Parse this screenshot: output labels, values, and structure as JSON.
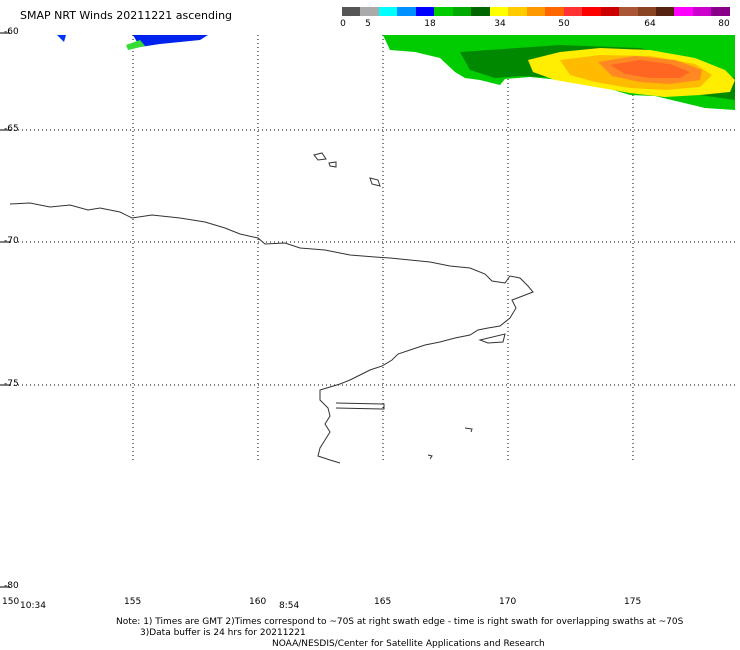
{
  "title": "SMAP NRT Winds 20211221 ascending",
  "legend": {
    "ticks": [
      "0",
      "5",
      "18",
      "34",
      "50",
      "64",
      "80"
    ],
    "colors": [
      "#555555",
      "#aaaaaa",
      "#00ffff",
      "#0090ff",
      "#0000ff",
      "#00cc00",
      "#00aa00",
      "#006600",
      "#ffff00",
      "#ffcc00",
      "#ff9900",
      "#ff6600",
      "#ff3333",
      "#ff0000",
      "#cc0000",
      "#aa5533",
      "#884422",
      "#552211",
      "#ff00ff",
      "#cc00cc",
      "#880088"
    ]
  },
  "lat_labels": [
    "-60",
    "-65",
    "-70",
    "-75",
    "-80"
  ],
  "lon_labels": [
    "150",
    "155",
    "160",
    "165",
    "170",
    "175"
  ],
  "time_labels": [
    "10:34",
    "8:54"
  ],
  "notes": [
    "Note: 1) Times are GMT 2)Times correspond to ~70S at right swath edge - time is right swath for overlapping swaths at ~70S",
    "3)Data buffer is 24 hrs for 20211221",
    "NOAA/NESDIS/Center for Satellite Applications and Research"
  ]
}
